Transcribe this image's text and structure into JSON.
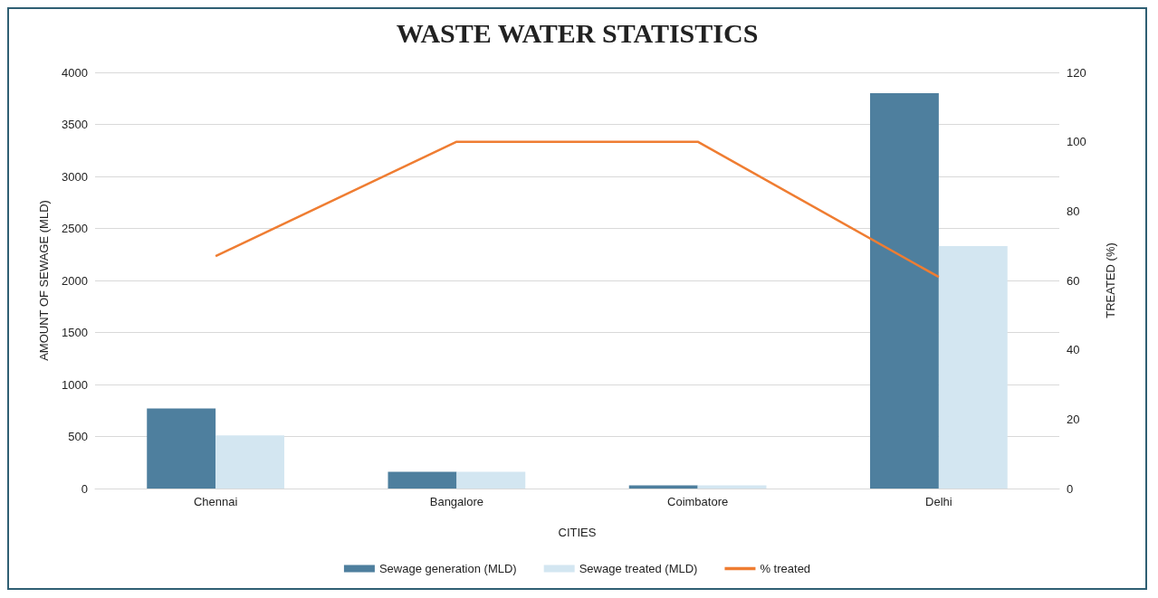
{
  "chart_data": {
    "type": "bar",
    "title": "WASTE WATER STATISTICS",
    "xlabel": "CITIES",
    "ylabel": "AMOUNT OF SEWAGE (MLD)",
    "y2label": "TREATED (%)",
    "categories": [
      "Chennai",
      "Bangalore",
      "Coimbatore",
      "Delhi"
    ],
    "series": [
      {
        "name": "Sewage generation (MLD)",
        "color": "#4e7f9e",
        "values": [
          770,
          160,
          30,
          3800
        ]
      },
      {
        "name": "Sewage treated (MLD)",
        "color": "#d3e6f1",
        "values": [
          510,
          160,
          30,
          2330
        ]
      },
      {
        "name": "% treated",
        "type": "line",
        "axis": "y2",
        "color": "#ef7d32",
        "values": [
          67,
          100,
          100,
          61
        ]
      }
    ],
    "ylim": [
      0,
      4000
    ],
    "yticks": [
      0,
      500,
      1000,
      1500,
      2000,
      2500,
      3000,
      3500,
      4000
    ],
    "y2lim": [
      0,
      120
    ],
    "y2ticks": [
      0,
      20,
      40,
      60,
      80,
      100,
      120
    ],
    "grid": "y",
    "legend": "bottom",
    "marker": "none"
  }
}
